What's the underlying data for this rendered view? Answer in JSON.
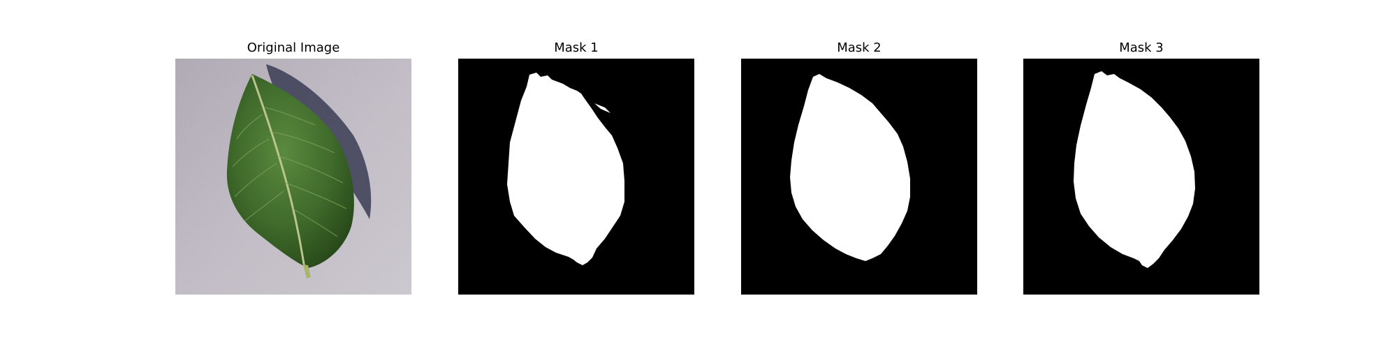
{
  "figure": {
    "panels": [
      {
        "title": "Original Image",
        "kind": "photo"
      },
      {
        "title": "Mask 1",
        "kind": "mask"
      },
      {
        "title": "Mask 2",
        "kind": "mask"
      },
      {
        "title": "Mask 3",
        "kind": "mask"
      }
    ]
  },
  "colors": {
    "background": "#ffffff",
    "mask_background": "#000000",
    "mask_foreground": "#ffffff",
    "photo_surface": "#b7b2bb",
    "leaf": "#3f6a2b",
    "leaf_dark": "#244416",
    "leaf_shadow": "#3a3c55",
    "midrib": "#b9c58c"
  }
}
